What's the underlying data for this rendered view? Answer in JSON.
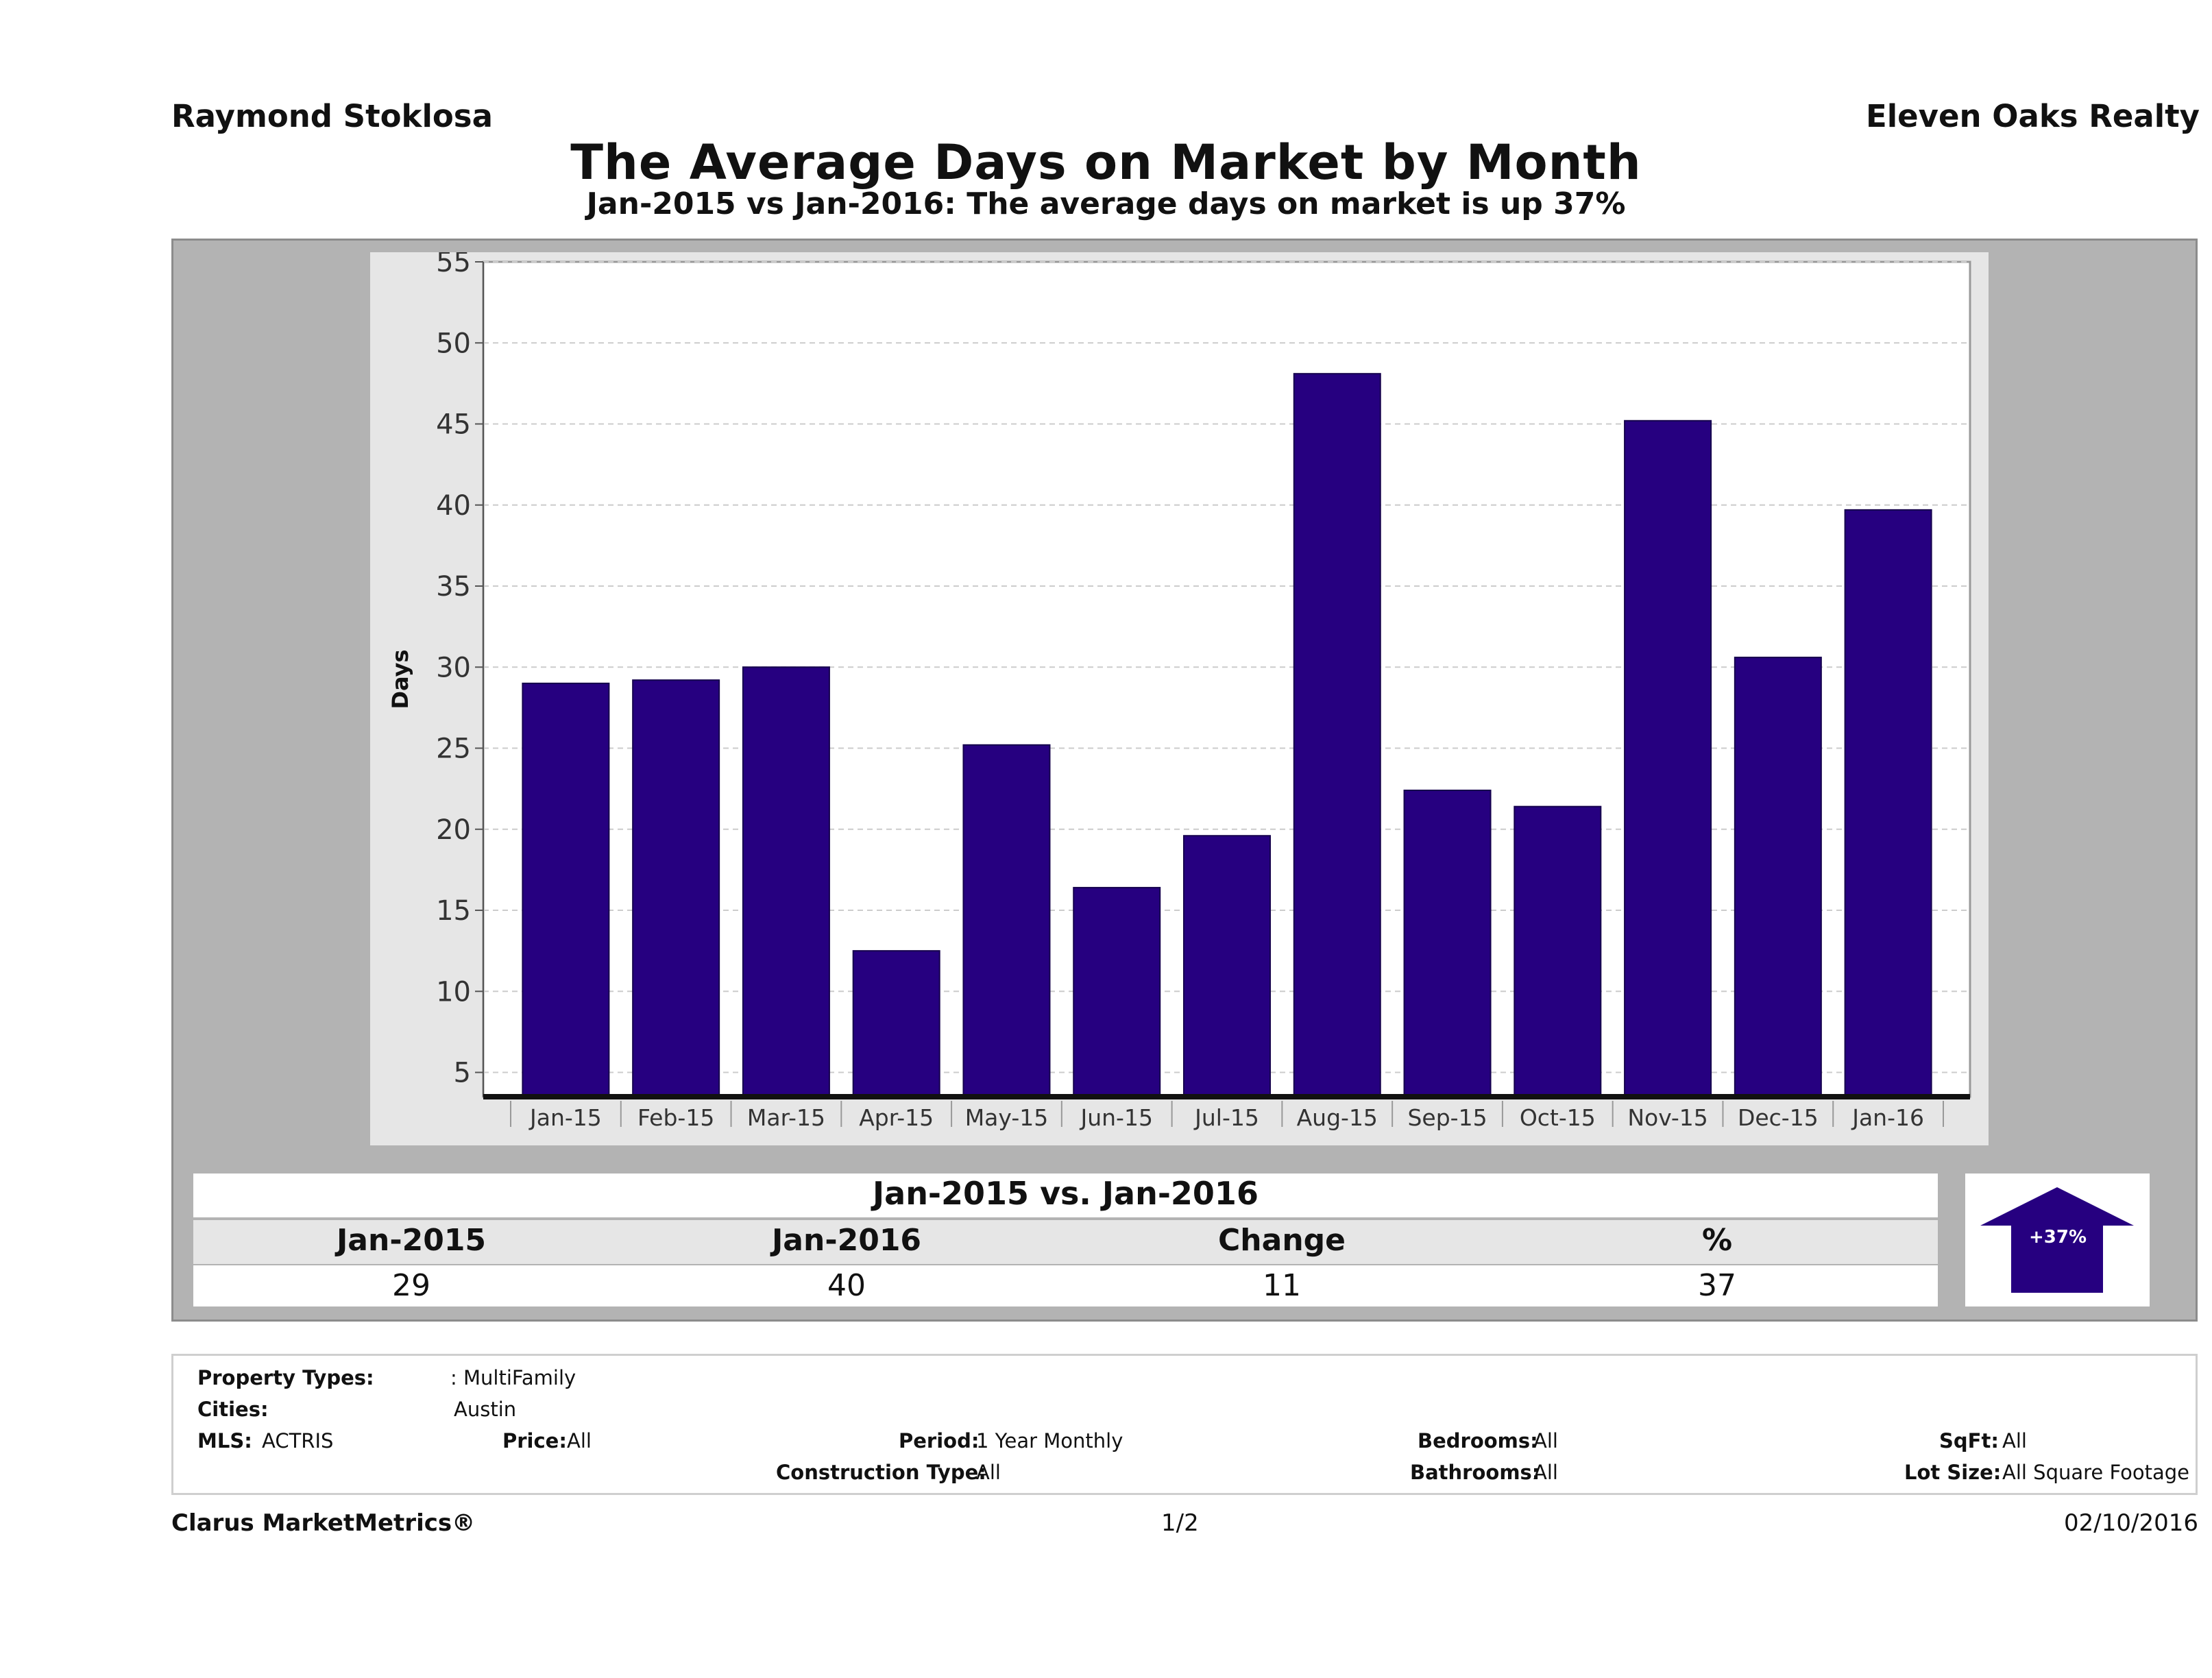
{
  "header": {
    "agent": "Raymond Stoklosa",
    "company": "Eleven Oaks Realty",
    "title": "The Average Days on Market by Month",
    "subtitle": "Jan-2015 vs Jan-2016: The average days on market is up 37%"
  },
  "chart_data": {
    "type": "bar",
    "categories": [
      "Jan-15",
      "Feb-15",
      "Mar-15",
      "Apr-15",
      "May-15",
      "Jun-15",
      "Jul-15",
      "Aug-15",
      "Sep-15",
      "Oct-15",
      "Nov-15",
      "Dec-15",
      "Jan-16"
    ],
    "values": [
      29,
      29.2,
      30,
      12.5,
      25.2,
      16.4,
      19.6,
      48.1,
      22.4,
      21.4,
      45.2,
      30.6,
      39.7
    ],
    "title": "",
    "xlabel": "",
    "ylabel": "Days",
    "ylim": [
      3.5,
      55
    ],
    "yticks": [
      5,
      10,
      15,
      20,
      25,
      30,
      35,
      40,
      45,
      50,
      55
    ],
    "grid": true,
    "bar_color": "#260080"
  },
  "summary": {
    "heading": "Jan-2015 vs. Jan-2016",
    "columns": [
      "Jan-2015",
      "Jan-2016",
      "Change",
      "%"
    ],
    "values": [
      "29",
      "40",
      "11",
      "37"
    ],
    "badge": "+37%",
    "badge_color": "#260080"
  },
  "criteria": {
    "property_types_label": "Property Types:",
    "property_types_value": ": MultiFamily",
    "cities_label": "Cities:",
    "cities_value": "Austin",
    "mls_label": "MLS:",
    "mls_value": "ACTRIS",
    "price_label": "Price:",
    "price_value": "All",
    "period_label": "Period:",
    "period_value": "1 Year Monthly",
    "construction_label": "Construction Type:",
    "construction_value": "All",
    "bedrooms_label": "Bedrooms:",
    "bedrooms_value": "All",
    "bathrooms_label": "Bathrooms:",
    "bathrooms_value": "All",
    "sqft_label": "SqFt:",
    "sqft_value": "All",
    "lotsize_label": "Lot Size:",
    "lotsize_value": "All Square Footage"
  },
  "footer": {
    "brand": "Clarus MarketMetrics®",
    "page": "1/2",
    "date": "02/10/2016"
  }
}
